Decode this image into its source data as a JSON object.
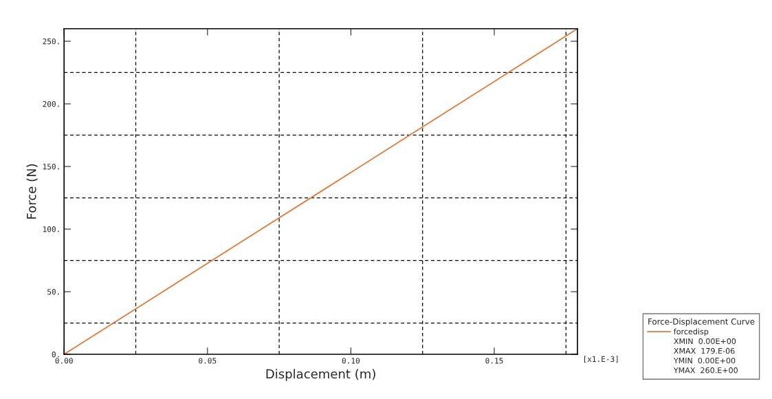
{
  "chart_data": {
    "type": "line",
    "xlabel": "Displacement (m)",
    "ylabel": "Force (N)",
    "legend_title": "Force-Displacement Curve",
    "x": [
      0,
      0.03,
      0.06,
      0.09,
      0.12,
      0.15,
      0.179
    ],
    "series": [
      {
        "name": "forcedisp",
        "color": "#e07b39",
        "values": [
          0,
          43.6,
          87.2,
          130.7,
          174.3,
          217.9,
          260
        ]
      }
    ],
    "xlim": [
      0,
      0.179
    ],
    "ylim": [
      0,
      260
    ],
    "xticks": [
      {
        "value": 0,
        "label": "0.00"
      },
      {
        "value": 0.05,
        "label": "0.05"
      },
      {
        "value": 0.1,
        "label": "0.10"
      },
      {
        "value": 0.15,
        "label": "0.15"
      }
    ],
    "yticks": [
      {
        "value": 0,
        "label": "0."
      },
      {
        "value": 50,
        "label": "50."
      },
      {
        "value": 100,
        "label": "100."
      },
      {
        "value": 150,
        "label": "150."
      },
      {
        "value": 200,
        "label": "200."
      },
      {
        "value": 250,
        "label": "250."
      }
    ],
    "ref_lines": [
      {
        "axis": "x",
        "value": 0.025,
        "color": "#000000",
        "line_style": "dashed"
      },
      {
        "axis": "x",
        "value": 0.075,
        "color": "#000000",
        "line_style": "dashed"
      },
      {
        "axis": "x",
        "value": 0.125,
        "color": "#000000",
        "line_style": "dashed"
      },
      {
        "axis": "x",
        "value": 0.175,
        "color": "#000000",
        "line_style": "dashed"
      },
      {
        "axis": "y",
        "value": 25,
        "color": "#000000",
        "line_style": "dashed"
      },
      {
        "axis": "y",
        "value": 75,
        "color": "#000000",
        "line_style": "dashed"
      },
      {
        "axis": "y",
        "value": 125,
        "color": "#000000",
        "line_style": "dashed"
      },
      {
        "axis": "y",
        "value": 175,
        "color": "#000000",
        "line_style": "dashed"
      },
      {
        "axis": "y",
        "value": 225,
        "color": "#000000",
        "line_style": "dashed"
      }
    ],
    "annotations": [
      "[x1.E-3]",
      "XMIN  0.00E+00",
      "XMAX  179.E-06",
      "YMIN  0.00E+00",
      "YMAX  260.E+00"
    ],
    "legend": "bottom right",
    "line_style": "solid",
    "grid": false
  }
}
